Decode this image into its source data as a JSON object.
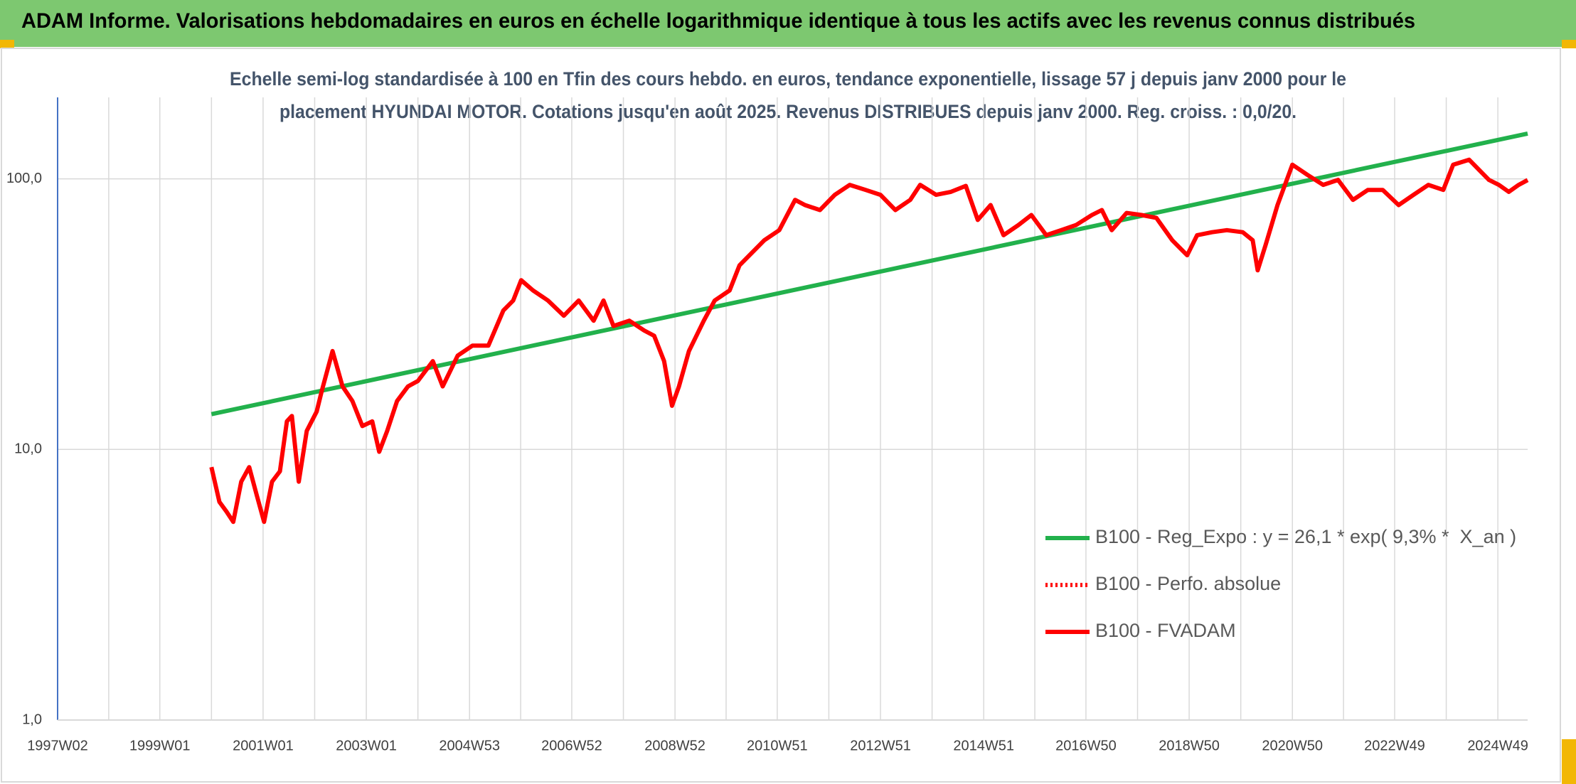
{
  "chart_data": {
    "type": "line",
    "title": "ADAM Informe. Valorisations hebdomadaires en euros en échelle logarithmique identique à tous les actifs avec les revenus connus distribués",
    "subtitle": [
      "Echelle semi-log standardisée à 100 en Tfin des cours hebdo. en euros, tendance exponentielle, lissage 57 j depuis janv 2000 pour le",
      "placement HYUNDAI MOTOR. Cotations jusqu'en août 2025. Revenus DISTRIBUES depuis janv 2000. Reg. croiss. : 0,0/20."
    ],
    "log_scale": true,
    "grid": true,
    "legend": "lower right",
    "xlim": [
      "1997W02",
      "2025W27"
    ],
    "xticks": [
      "1997W02",
      null,
      "1999W01",
      null,
      "2001W01",
      null,
      "2003W01",
      null,
      "2004W53",
      null,
      "2006W52",
      null,
      "2008W52",
      null,
      "2010W51",
      null,
      "2012W51",
      null,
      "2014W51",
      null,
      "2016W50",
      null,
      "2018W50",
      null,
      "2020W50",
      null,
      "2022W49",
      null,
      "2024W49"
    ],
    "ylim": [
      1,
      200
    ],
    "yticks": [
      {
        "value": 1,
        "label": "1,0"
      },
      {
        "value": 10,
        "label": "10,0"
      },
      {
        "value": 100,
        "label": "100,0"
      }
    ],
    "series": [
      {
        "name": "B100 - Reg_Expo : y = 26,1 * exp( 9,3% *  X_an )",
        "color": "#22b14c",
        "style": "solid",
        "x": [
          "2000W01",
          "2025W27"
        ],
        "values": [
          13.5,
          147
        ]
      },
      {
        "name": "B100 - Perfo. absolue",
        "color": "#ff0000",
        "style": "dotted",
        "x": [],
        "values": []
      },
      {
        "name": "B100 - FVADAM",
        "color": "#ff0000",
        "style": "solid",
        "x": [
          "2000W01",
          "2000W09",
          "2000W16",
          "2000W23",
          "2000W31",
          "2000W39",
          "2000W47",
          "2001W02",
          "2001W10",
          "2001W18",
          "2001W25",
          "2001W30",
          "2001W37",
          "2001W45",
          "2002W03",
          "2002W08",
          "2002W19",
          "2002W29",
          "2002W39",
          "2002W49",
          "2003W07",
          "2003W14",
          "2003W22",
          "2003W32",
          "2003W43",
          "2004W01",
          "2004W16",
          "2004W26",
          "2004W41",
          "2005W04",
          "2005W20",
          "2005W35",
          "2005W45",
          "2006W01",
          "2006W13",
          "2006W28",
          "2006W44",
          "2007W07",
          "2007W22",
          "2007W32",
          "2007W42",
          "2008W06",
          "2008W21",
          "2008W31",
          "2008W41",
          "2008W49",
          "2009W04",
          "2009W14",
          "2009W29",
          "2009W40",
          "2010W03",
          "2010W13",
          "2010W23",
          "2010W38",
          "2011W01",
          "2011W17",
          "2011W27",
          "2011W42",
          "2012W05",
          "2012W20",
          "2012W36",
          "2012W51",
          "2013W14",
          "2013W29",
          "2013W39",
          "2014W03",
          "2014W18",
          "2014W33",
          "2014W45",
          "2015W06",
          "2015W19",
          "2015W34",
          "2015W47",
          "2016W10",
          "2016W25",
          "2016W40",
          "2017W04",
          "2017W14",
          "2017W24",
          "2017W39",
          "2018W02",
          "2018W17",
          "2018W33",
          "2018W48",
          "2019W06",
          "2019W21",
          "2019W36",
          "2019W52",
          "2020W10",
          "2020W15",
          "2020W23",
          "2020W35",
          "2020W50",
          "2021W13",
          "2021W29",
          "2021W44",
          "2022W07",
          "2022W22",
          "2022W37",
          "2023W01",
          "2023W16",
          "2023W31",
          "2023W46",
          "2024W04",
          "2024W20",
          "2024W30",
          "2024W40",
          "2024W50",
          "2025W08",
          "2025W18",
          "2025W27"
        ],
        "values": [
          8.6,
          6.4,
          5.9,
          5.4,
          7.6,
          8.6,
          6.7,
          5.4,
          7.6,
          8.3,
          12.7,
          13.3,
          7.6,
          11.7,
          13.8,
          16.4,
          23.1,
          17.1,
          15.1,
          12.2,
          12.7,
          9.8,
          11.7,
          15.1,
          17.1,
          17.9,
          21.2,
          17.1,
          22.2,
          24.2,
          24.2,
          32.6,
          35.5,
          42.2,
          38.7,
          35.5,
          31.2,
          35.5,
          29.9,
          35.5,
          28.6,
          29.9,
          27.5,
          26.3,
          21.2,
          14.5,
          17.1,
          23.1,
          29.9,
          35.5,
          38.7,
          47.9,
          52.2,
          59.3,
          64.6,
          83.6,
          80.0,
          76.7,
          87.3,
          95.0,
          91.0,
          87.3,
          76.7,
          83.6,
          95.0,
          87.3,
          89.5,
          94.2,
          70.5,
          80.0,
          61.9,
          67.5,
          73.5,
          61.9,
          64.6,
          67.5,
          73.5,
          76.7,
          64.6,
          74.8,
          73.5,
          71.7,
          59.3,
          52.2,
          61.9,
          63.5,
          64.6,
          63.5,
          59.3,
          45.9,
          56.9,
          80.0,
          112.8,
          103.5,
          95.0,
          99.1,
          83.6,
          91.0,
          91.0,
          80.0,
          87.3,
          95.0,
          91.0,
          112.8,
          117.7,
          108.0,
          99.1,
          95.0,
          89.5,
          95.0,
          99.0
        ]
      }
    ]
  }
}
